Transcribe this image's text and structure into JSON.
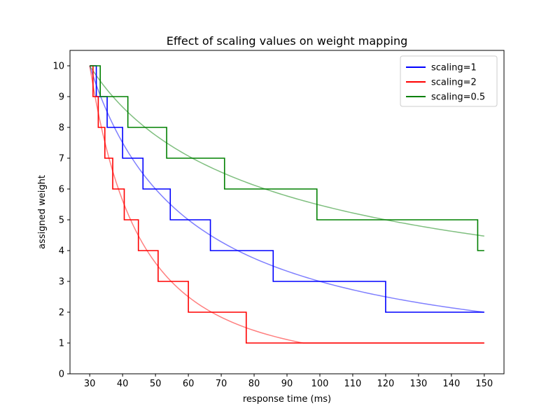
{
  "chart_data": {
    "type": "line",
    "title": "Effect of scaling values on weight mapping",
    "xlabel": "response time (ms)",
    "ylabel": "assigned weight",
    "xlim": [
      24.0,
      156.0
    ],
    "ylim": [
      0,
      10.5
    ],
    "xticks": [
      30,
      40,
      50,
      60,
      70,
      80,
      90,
      100,
      110,
      120,
      130,
      140,
      150
    ],
    "yticks": [
      0,
      1,
      2,
      3,
      4,
      5,
      6,
      7,
      8,
      9,
      10
    ],
    "legend_position": "top-right",
    "series": [
      {
        "name": "scaling=1",
        "color": "#0000ff",
        "scaling": 1,
        "step_points": [
          [
            30,
            10
          ],
          [
            32,
            10
          ],
          [
            32,
            9
          ],
          [
            35.3,
            9
          ],
          [
            35.3,
            8
          ],
          [
            40,
            8
          ],
          [
            40,
            7
          ],
          [
            46.2,
            7
          ],
          [
            46.2,
            6
          ],
          [
            54.5,
            6
          ],
          [
            54.5,
            5
          ],
          [
            66.7,
            5
          ],
          [
            66.7,
            4
          ],
          [
            85.8,
            4
          ],
          [
            85.8,
            3
          ],
          [
            120,
            3
          ],
          [
            120,
            2
          ],
          [
            150,
            2
          ]
        ]
      },
      {
        "name": "scaling=2",
        "color": "#ff0000",
        "scaling": 2,
        "step_points": [
          [
            30,
            10
          ],
          [
            31,
            10
          ],
          [
            31,
            9
          ],
          [
            32.6,
            9
          ],
          [
            32.6,
            8
          ],
          [
            34.6,
            8
          ],
          [
            34.6,
            7
          ],
          [
            37,
            7
          ],
          [
            37,
            6
          ],
          [
            40.5,
            6
          ],
          [
            40.5,
            5
          ],
          [
            44.8,
            5
          ],
          [
            44.8,
            4
          ],
          [
            50.8,
            4
          ],
          [
            50.8,
            3
          ],
          [
            60,
            3
          ],
          [
            60,
            2
          ],
          [
            77.6,
            2
          ],
          [
            77.6,
            1
          ],
          [
            150,
            1
          ]
        ]
      },
      {
        "name": "scaling=0.5",
        "color": "#008000",
        "scaling": 0.5,
        "step_points": [
          [
            30,
            10
          ],
          [
            33.2,
            10
          ],
          [
            33.2,
            9
          ],
          [
            41.6,
            9
          ],
          [
            41.6,
            8
          ],
          [
            53.4,
            8
          ],
          [
            53.4,
            7
          ],
          [
            71,
            7
          ],
          [
            71,
            6
          ],
          [
            99.1,
            6
          ],
          [
            99.1,
            5
          ],
          [
            148,
            5
          ],
          [
            148,
            4
          ],
          [
            150,
            4
          ]
        ]
      }
    ]
  }
}
